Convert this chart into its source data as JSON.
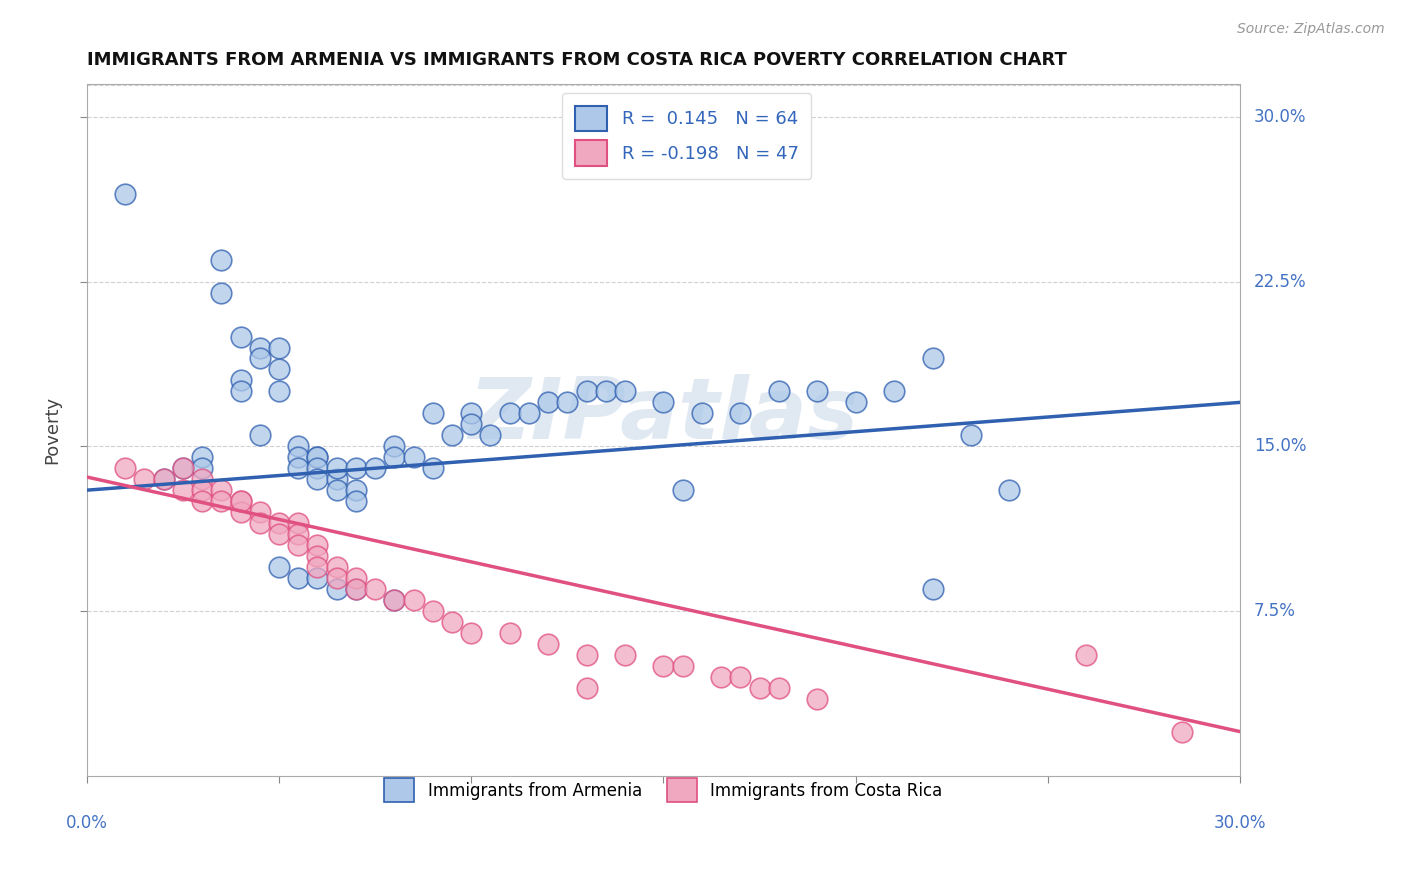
{
  "title": "IMMIGRANTS FROM ARMENIA VS IMMIGRANTS FROM COSTA RICA POVERTY CORRELATION CHART",
  "source": "Source: ZipAtlas.com",
  "ylabel": "Poverty",
  "yticks": [
    0.075,
    0.15,
    0.225,
    0.3
  ],
  "ytick_labels": [
    "7.5%",
    "15.0%",
    "22.5%",
    "30.0%"
  ],
  "xmin": 0.0,
  "xmax": 0.3,
  "ymin": 0.0,
  "ymax": 0.315,
  "armenia_color": "#adc8e8",
  "costarica_color": "#f0a8c0",
  "armenia_line_color": "#3060b0",
  "costarica_line_color": "#e05080",
  "legend_r_armenia": "R =  0.145   N = 64",
  "legend_r_costarica": "R = -0.198   N = 47",
  "armenia_x": [
    0.01,
    0.02,
    0.025,
    0.03,
    0.03,
    0.035,
    0.035,
    0.04,
    0.04,
    0.04,
    0.045,
    0.045,
    0.045,
    0.05,
    0.05,
    0.05,
    0.055,
    0.055,
    0.055,
    0.06,
    0.06,
    0.06,
    0.06,
    0.065,
    0.065,
    0.065,
    0.07,
    0.07,
    0.07,
    0.075,
    0.08,
    0.08,
    0.085,
    0.09,
    0.09,
    0.095,
    0.1,
    0.1,
    0.105,
    0.11,
    0.115,
    0.12,
    0.125,
    0.13,
    0.135,
    0.14,
    0.15,
    0.16,
    0.17,
    0.18,
    0.19,
    0.2,
    0.21,
    0.22,
    0.23,
    0.24,
    0.05,
    0.055,
    0.06,
    0.065,
    0.07,
    0.08,
    0.22,
    0.155
  ],
  "armenia_y": [
    0.265,
    0.135,
    0.14,
    0.145,
    0.14,
    0.235,
    0.22,
    0.2,
    0.18,
    0.175,
    0.195,
    0.19,
    0.155,
    0.195,
    0.185,
    0.175,
    0.15,
    0.145,
    0.14,
    0.145,
    0.145,
    0.14,
    0.135,
    0.135,
    0.14,
    0.13,
    0.14,
    0.13,
    0.125,
    0.14,
    0.15,
    0.145,
    0.145,
    0.165,
    0.14,
    0.155,
    0.165,
    0.16,
    0.155,
    0.165,
    0.165,
    0.17,
    0.17,
    0.175,
    0.175,
    0.175,
    0.17,
    0.165,
    0.165,
    0.175,
    0.175,
    0.17,
    0.175,
    0.19,
    0.155,
    0.13,
    0.095,
    0.09,
    0.09,
    0.085,
    0.085,
    0.08,
    0.085,
    0.13
  ],
  "costarica_x": [
    0.01,
    0.015,
    0.02,
    0.025,
    0.025,
    0.03,
    0.03,
    0.03,
    0.035,
    0.035,
    0.04,
    0.04,
    0.04,
    0.045,
    0.045,
    0.05,
    0.05,
    0.055,
    0.055,
    0.055,
    0.06,
    0.06,
    0.06,
    0.065,
    0.065,
    0.07,
    0.07,
    0.075,
    0.08,
    0.085,
    0.09,
    0.095,
    0.1,
    0.11,
    0.12,
    0.13,
    0.14,
    0.15,
    0.155,
    0.165,
    0.17,
    0.175,
    0.18,
    0.19,
    0.26,
    0.285,
    0.13
  ],
  "costarica_y": [
    0.14,
    0.135,
    0.135,
    0.14,
    0.13,
    0.135,
    0.13,
    0.125,
    0.13,
    0.125,
    0.125,
    0.12,
    0.125,
    0.12,
    0.115,
    0.115,
    0.11,
    0.115,
    0.11,
    0.105,
    0.105,
    0.1,
    0.095,
    0.095,
    0.09,
    0.09,
    0.085,
    0.085,
    0.08,
    0.08,
    0.075,
    0.07,
    0.065,
    0.065,
    0.06,
    0.055,
    0.055,
    0.05,
    0.05,
    0.045,
    0.045,
    0.04,
    0.04,
    0.035,
    0.055,
    0.02,
    0.04
  ],
  "watermark": "ZIPatlas",
  "background_color": "#ffffff",
  "grid_color": "#cccccc"
}
